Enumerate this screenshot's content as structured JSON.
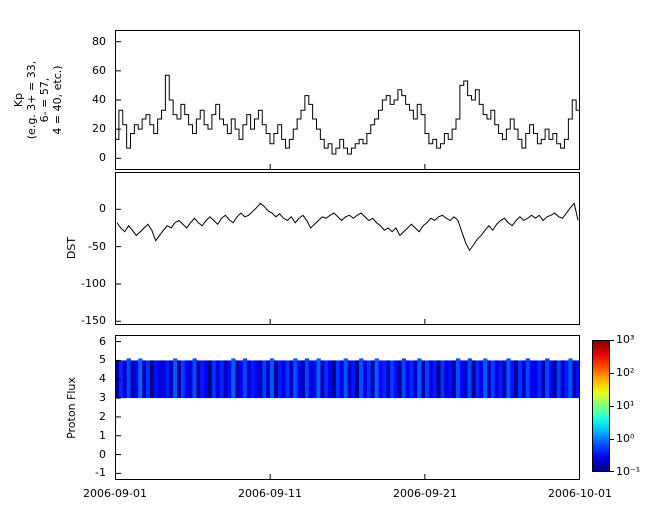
{
  "figure": {
    "background": "#ffffff",
    "line_color": "#000000"
  },
  "xaxis": {
    "tick_labels": [
      "2006-09-01",
      "2006-09-11",
      "2006-09-21",
      "2006-10-01"
    ]
  },
  "chart_data": [
    {
      "type": "line",
      "name": "Kp index",
      "ylabel_lines": [
        "Kp",
        "(e.g. 3+ = 33,",
        "6- = 57,",
        "4 = 40, etc.)"
      ],
      "step": true,
      "x_start": "2006-09-01",
      "x_end": "2006-10-01",
      "ylim": [
        -8,
        88
      ],
      "yticks": [
        80,
        60,
        40,
        20,
        0
      ],
      "line_color": "#000000",
      "values": [
        13,
        33,
        23,
        7,
        17,
        23,
        20,
        27,
        30,
        23,
        17,
        27,
        33,
        57,
        40,
        30,
        27,
        37,
        30,
        23,
        17,
        27,
        33,
        23,
        20,
        30,
        37,
        27,
        23,
        17,
        27,
        20,
        13,
        23,
        30,
        20,
        27,
        33,
        23,
        17,
        10,
        17,
        23,
        13,
        7,
        13,
        20,
        27,
        33,
        43,
        37,
        27,
        20,
        13,
        7,
        10,
        3,
        7,
        13,
        7,
        3,
        7,
        10,
        13,
        10,
        17,
        23,
        27,
        33,
        40,
        43,
        37,
        40,
        47,
        43,
        37,
        33,
        27,
        37,
        30,
        17,
        10,
        13,
        7,
        10,
        17,
        13,
        20,
        27,
        50,
        53,
        43,
        40,
        47,
        37,
        30,
        27,
        33,
        23,
        17,
        13,
        20,
        27,
        20,
        13,
        7,
        17,
        23,
        17,
        10,
        13,
        20,
        13,
        17,
        10,
        7,
        13,
        27,
        40,
        33
      ]
    },
    {
      "type": "line",
      "name": "DST index",
      "ylabel": "DST",
      "step": false,
      "x_start": "2006-09-01",
      "x_end": "2006-10-01",
      "ylim": [
        -155,
        50
      ],
      "yticks": [
        0,
        -50,
        -100,
        -150
      ],
      "line_color": "#000000",
      "values": [
        -18,
        -25,
        -30,
        -22,
        -28,
        -35,
        -30,
        -25,
        -20,
        -28,
        -42,
        -35,
        -28,
        -22,
        -25,
        -18,
        -15,
        -20,
        -25,
        -18,
        -12,
        -18,
        -22,
        -15,
        -10,
        -15,
        -20,
        -12,
        -8,
        -14,
        -18,
        -10,
        -5,
        -10,
        -8,
        -3,
        2,
        8,
        4,
        -2,
        -5,
        -10,
        -6,
        -12,
        -15,
        -10,
        -18,
        -12,
        -8,
        -15,
        -25,
        -20,
        -15,
        -10,
        -12,
        -8,
        -5,
        -10,
        -15,
        -10,
        -8,
        -12,
        -8,
        -5,
        -10,
        -15,
        -12,
        -18,
        -22,
        -28,
        -25,
        -30,
        -25,
        -35,
        -30,
        -25,
        -20,
        -25,
        -30,
        -22,
        -18,
        -12,
        -15,
        -10,
        -8,
        -12,
        -15,
        -10,
        -15,
        -30,
        -45,
        -55,
        -48,
        -40,
        -35,
        -28,
        -22,
        -28,
        -20,
        -15,
        -12,
        -18,
        -22,
        -15,
        -10,
        -15,
        -12,
        -8,
        -12,
        -8,
        -15,
        -10,
        -8,
        -5,
        -10,
        -12,
        -5,
        2,
        8,
        -15
      ]
    },
    {
      "type": "heatmap",
      "name": "Proton Flux spectrogram",
      "ylabel": "Proton Flux",
      "x_start": "2006-09-01",
      "x_end": "2006-10-01",
      "ylim": [
        -1.35,
        6.35
      ],
      "yticks": [
        6,
        5,
        4,
        3,
        2,
        1,
        0,
        -1
      ],
      "band_y": [
        3,
        5
      ],
      "colorbar": {
        "scale": "log",
        "colormap": "jet",
        "vmin": 0.1,
        "vmax": 1000,
        "tick_labels": [
          "10³",
          "10²",
          "10¹",
          "10⁰",
          "10⁻¹"
        ]
      },
      "intensity": [
        0.12,
        0.45,
        0.2,
        0.6,
        0.15,
        0.3,
        0.8,
        0.18,
        0.5,
        0.1,
        0.35,
        0.25,
        0.22,
        0.4,
        0.15,
        0.7,
        0.12,
        0.55,
        0.3,
        0.2,
        0.65,
        0.14,
        0.4,
        0.28,
        0.1,
        0.5,
        0.25,
        0.45,
        0.18,
        0.35,
        0.75,
        0.15,
        0.3,
        0.6,
        0.2,
        0.4,
        0.3,
        0.15,
        0.55,
        0.2,
        0.7,
        0.12,
        0.4,
        0.25,
        0.5,
        0.18,
        0.65,
        0.3,
        0.14,
        0.6,
        0.22,
        0.35,
        0.8,
        0.16,
        0.45,
        0.3,
        0.12,
        0.5,
        0.26,
        0.7,
        0.2,
        0.4,
        0.12,
        0.65,
        0.25,
        0.5,
        0.15,
        0.75,
        0.3,
        0.45,
        0.18,
        0.55,
        0.35,
        0.12,
        0.6,
        0.28,
        0.45,
        0.2,
        0.7,
        0.15,
        0.55,
        0.25,
        0.4,
        0.1,
        0.5,
        0.22,
        0.35,
        0.14,
        0.65,
        0.3,
        0.2,
        0.6,
        0.12,
        0.45,
        0.28,
        0.75,
        0.18,
        0.55,
        0.25,
        0.4,
        0.15,
        0.7,
        0.35,
        0.12,
        0.5,
        0.22,
        0.6,
        0.3,
        0.25,
        0.45,
        0.15,
        0.6,
        0.3,
        0.12,
        0.55,
        0.2,
        0.4,
        0.7,
        0.16,
        0.35
      ]
    }
  ]
}
